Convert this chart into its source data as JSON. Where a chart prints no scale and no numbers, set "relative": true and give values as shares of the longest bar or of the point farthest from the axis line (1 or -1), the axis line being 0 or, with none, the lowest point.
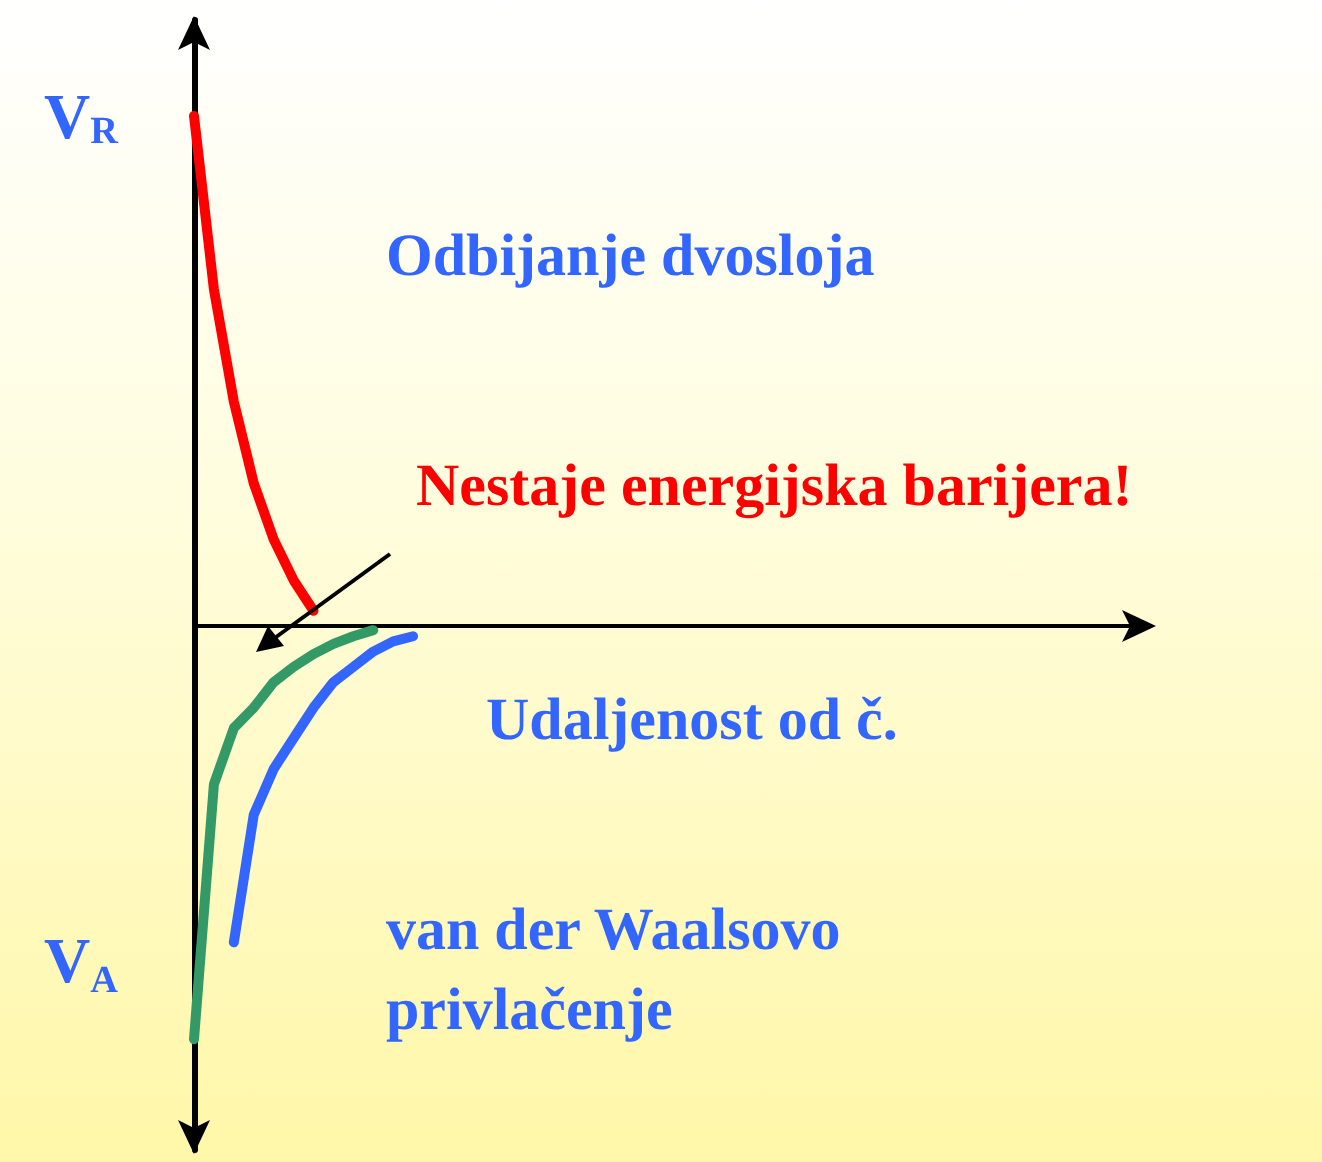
{
  "chart_data": {
    "type": "line",
    "relative": true,
    "tick_labels": false,
    "grid": false,
    "marker": "none",
    "line_style": "solid",
    "xlabel": "Udaljenost od č.",
    "ylabel": "V$_{R}$",
    "annotations": [
      "V$_{A}$",
      "Odbijanje dvosloja",
      "Nestaje energijska barijera!",
      "van der Waalsovo privlačenje"
    ],
    "categories": [
      null,
      null,
      null,
      null,
      null,
      null,
      null,
      null,
      null,
      null,
      null,
      null,
      null,
      null,
      null,
      null,
      null,
      null,
      null,
      null,
      null,
      null,
      null,
      null,
      null,
      null,
      null,
      null,
      null,
      null,
      null,
      null,
      null,
      null,
      null,
      null,
      null,
      null,
      null,
      null,
      null,
      null,
      null,
      null,
      null,
      null,
      null,
      null,
      null
    ],
    "series": [
      {
        "color": "#ff0000",
        "values": [
          1.0,
          0.66,
          0.44,
          0.28,
          0.17,
          0.09,
          0.03,
          null,
          null,
          null,
          null,
          null,
          null,
          null,
          null,
          null,
          null,
          null,
          null,
          null,
          null,
          null,
          null,
          null,
          null,
          null,
          null,
          null,
          null,
          null,
          null,
          null,
          null,
          null,
          null,
          null,
          null,
          null,
          null,
          null,
          null,
          null,
          null,
          null,
          null,
          null,
          null,
          null,
          null
        ]
      },
      {
        "color": "#339966",
        "values": [
          -0.81,
          -0.31,
          -0.2,
          -0.16,
          -0.11,
          -0.08,
          -0.055,
          -0.035,
          -0.02,
          -0.008,
          null,
          null,
          null,
          null,
          null,
          null,
          null,
          null,
          null,
          null,
          null,
          null,
          null,
          null,
          null,
          null,
          null,
          null,
          null,
          null,
          null,
          null,
          null,
          null,
          null,
          null,
          null,
          null,
          null,
          null,
          null,
          null,
          null,
          null,
          null,
          null,
          null,
          null,
          null
        ]
      },
      {
        "color": "#3366ff",
        "values": [
          null,
          null,
          -0.62,
          -0.37,
          -0.28,
          -0.22,
          -0.16,
          -0.11,
          -0.08,
          -0.05,
          -0.03,
          -0.02,
          null,
          null,
          null,
          null,
          null,
          null,
          null,
          null,
          null,
          null,
          null,
          null,
          null,
          null,
          null,
          null,
          null,
          null,
          null,
          null,
          null,
          null,
          null,
          null,
          null,
          null,
          null,
          null,
          null,
          null,
          null,
          null,
          null,
          null,
          null,
          null,
          null
        ]
      }
    ]
  }
}
